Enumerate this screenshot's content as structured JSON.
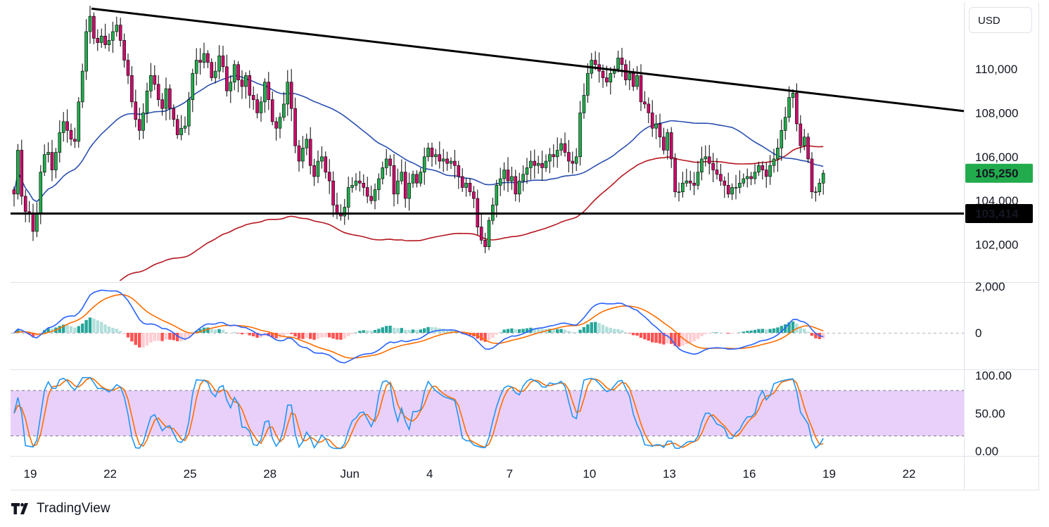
{
  "currency_button": "USD",
  "brand": {
    "name": "TradingView",
    "icon": "tradingview-logo-icon"
  },
  "chart_data": {
    "type": "candlestick",
    "price_axis": {
      "ticks": [
        "110,000",
        "108,000",
        "106,000",
        "104,000",
        "102,000"
      ],
      "tick_values": [
        110000,
        108000,
        106000,
        104000,
        102000
      ],
      "ylim": [
        100800,
        113000
      ]
    },
    "time_axis": {
      "ticks": [
        "19",
        "22",
        "25",
        "28",
        "Jun",
        "4",
        "7",
        "10",
        "13",
        "16",
        "19",
        "22"
      ]
    },
    "last_price": {
      "label": "105,250",
      "value": 105250,
      "color": "#22ab4c"
    },
    "support": {
      "label": "103,414",
      "value": 103414,
      "color": "#000000"
    },
    "trendline": {
      "start": {
        "date": "May 21",
        "value": 112750
      },
      "end": {
        "date": "Jun 22",
        "value": 108080
      }
    },
    "candles_close": [
      104300,
      106300,
      104200,
      103500,
      103400,
      102600,
      103400,
      105300,
      106100,
      106200,
      105400,
      106200,
      107100,
      107600,
      107200,
      106800,
      106700,
      108500,
      109900,
      111700,
      112400,
      111400,
      111200,
      111500,
      111100,
      111300,
      111700,
      112000,
      111300,
      110400,
      109700,
      108500,
      107700,
      107200,
      108000,
      109000,
      109700,
      109300,
      108600,
      108200,
      109100,
      108200,
      107700,
      107000,
      107300,
      107400,
      108600,
      109800,
      110400,
      110300,
      110700,
      110300,
      109600,
      109900,
      110600,
      110100,
      109000,
      109400,
      110200,
      109500,
      109200,
      109700,
      108800,
      108600,
      108000,
      108500,
      109400,
      108600,
      107600,
      107300,
      107800,
      108400,
      109400,
      108200,
      106500,
      105800,
      106400,
      106800,
      105600,
      105100,
      105800,
      106000,
      105300,
      104900,
      103800,
      103400,
      103300,
      103700,
      104600,
      104700,
      104900,
      104800,
      104600,
      104200,
      104000,
      104500,
      105000,
      105500,
      105900,
      105600,
      104300,
      104900,
      105300,
      104100,
      104800,
      105200,
      104800,
      105300,
      106000,
      106400,
      106000,
      106100,
      105800,
      105900,
      105700,
      105800,
      105600,
      105100,
      104600,
      104800,
      104400,
      104100,
      102800,
      102200,
      101900,
      103100,
      103800,
      104700,
      105000,
      105400,
      104900,
      105100,
      104300,
      104900,
      105200,
      105500,
      105800,
      105600,
      105700,
      105500,
      105800,
      106100,
      106000,
      106300,
      106600,
      106200,
      105800,
      105700,
      106000,
      108000,
      108800,
      109800,
      110400,
      110200,
      109900,
      109600,
      109400,
      109800,
      110000,
      110500,
      110200,
      109500,
      109800,
      109200,
      109700,
      108500,
      108400,
      108000,
      107300,
      107500,
      106900,
      106300,
      107100,
      105900,
      104400,
      104400,
      104800,
      104900,
      104800,
      104700,
      105300,
      105900,
      106000,
      105700,
      105400,
      105200,
      104900,
      104700,
      104300,
      104600,
      104600,
      104800,
      105000,
      105100,
      105000,
      105300,
      105600,
      105400,
      105100,
      105600,
      105900,
      106400,
      107200,
      107800,
      108700,
      108900,
      107500,
      106500,
      106900,
      105900,
      104400,
      104400,
      104800,
      105250
    ]
  },
  "macd": {
    "ticks": [
      "2,000",
      "0"
    ],
    "tick_values": [
      2000,
      0
    ],
    "macd_color": "#2962ff",
    "signal_color": "#ff6d00",
    "hist_pos_colors": [
      "#26a69a",
      "#b2dfdb"
    ],
    "hist_neg_colors": [
      "#ff5252",
      "#ffcdd2"
    ]
  },
  "stochastic": {
    "ticks": [
      "100.00",
      "50.00",
      "0.00"
    ],
    "tick_values": [
      100,
      50,
      0
    ],
    "upper_band": 80,
    "lower_band": 20,
    "band_color": "#e9d0fb",
    "k_color": "#2196f3",
    "d_color": "#ff6d00"
  },
  "colors": {
    "up": "#22ab4c",
    "down": "#cc0a6b",
    "ma_fast": "#2a4fb0",
    "ma_slow": "#b5161f"
  }
}
